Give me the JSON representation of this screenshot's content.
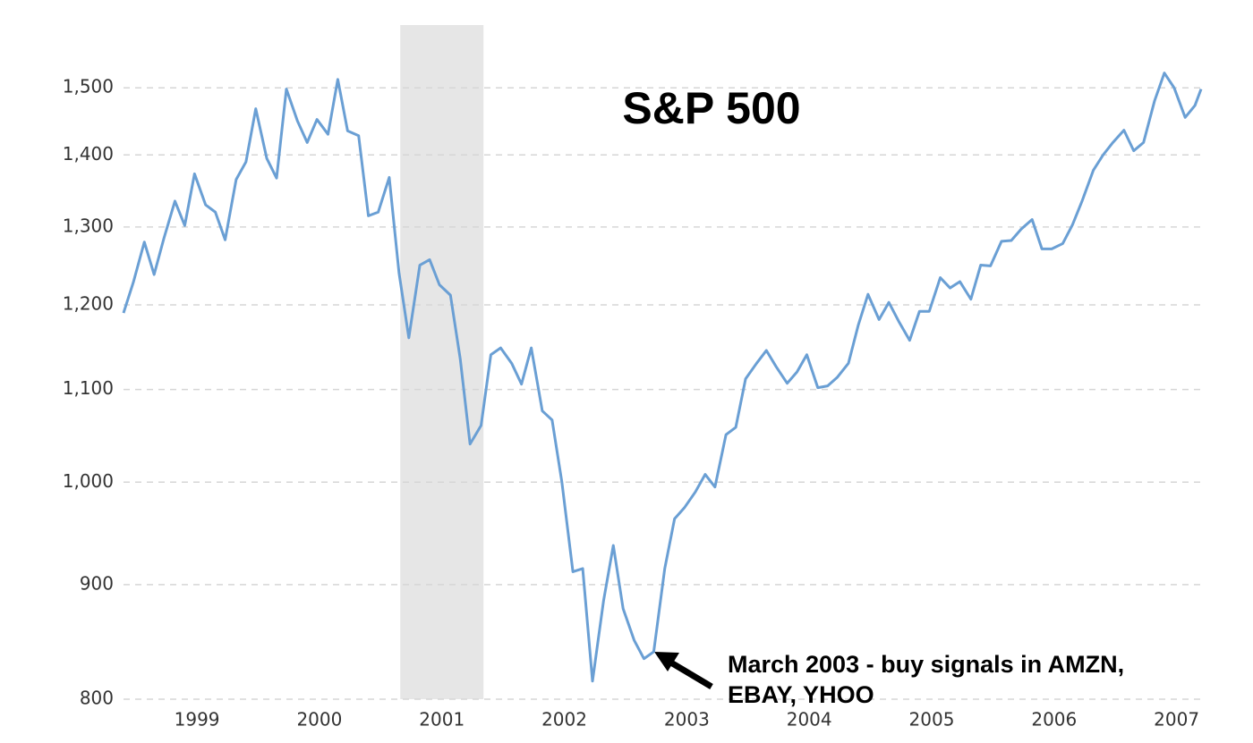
{
  "chart_data": {
    "type": "line",
    "title": "S&P 500",
    "annotation": [
      "March 2003 - buy signals in AMZN,",
      "EBAY, YHOO"
    ],
    "log_y": true,
    "grid": true,
    "shaded_x": [
      2000.66,
      2001.34
    ],
    "xlim": [
      1998.4,
      2007.2
    ],
    "xticks": [
      1999,
      2000,
      2001,
      2002,
      2003,
      2004,
      2005,
      2006,
      2007
    ],
    "ylim": [
      800,
      1600
    ],
    "yticks": [
      {
        "value": 800,
        "label": "800"
      },
      {
        "value": 900,
        "label": "900"
      },
      {
        "value": 1000,
        "label": "1,000"
      },
      {
        "value": 1100,
        "label": "1,100"
      },
      {
        "value": 1200,
        "label": "1,200"
      },
      {
        "value": 1300,
        "label": "1,300"
      },
      {
        "value": 1400,
        "label": "1,400"
      },
      {
        "value": 1500,
        "label": "1,500"
      }
    ],
    "x": [
      1998.4,
      1998.48,
      1998.57,
      1998.65,
      1998.73,
      1998.82,
      1998.9,
      1998.98,
      1999.07,
      1999.15,
      1999.23,
      1999.32,
      1999.4,
      1999.48,
      1999.57,
      1999.65,
      1999.73,
      1999.82,
      1999.9,
      1999.98,
      2000.07,
      2000.15,
      2000.23,
      2000.32,
      2000.4,
      2000.48,
      2000.57,
      2000.65,
      2000.73,
      2000.82,
      2000.9,
      2000.98,
      2001.07,
      2001.15,
      2001.23,
      2001.32,
      2001.4,
      2001.48,
      2001.57,
      2001.65,
      2001.73,
      2001.82,
      2001.9,
      2001.98,
      2002.07,
      2002.15,
      2002.23,
      2002.32,
      2002.4,
      2002.48,
      2002.57,
      2002.65,
      2002.73,
      2002.82,
      2002.9,
      2002.98,
      2003.07,
      2003.15,
      2003.23,
      2003.32,
      2003.4,
      2003.48,
      2003.57,
      2003.65,
      2003.73,
      2003.82,
      2003.9,
      2003.98,
      2004.07,
      2004.15,
      2004.23,
      2004.32,
      2004.4,
      2004.48,
      2004.57,
      2004.65,
      2004.73,
      2004.82,
      2004.9,
      2004.98,
      2005.07,
      2005.15,
      2005.23,
      2005.32,
      2005.4,
      2005.48,
      2005.57,
      2005.65,
      2005.73,
      2005.82,
      2005.9,
      2005.98,
      2006.07,
      2006.15,
      2006.23,
      2006.32,
      2006.4,
      2006.48,
      2006.57,
      2006.65,
      2006.73,
      2006.82,
      2006.9,
      2006.98,
      2007.07,
      2007.15,
      2007.2
    ],
    "series": [
      {
        "color": "#6a9fd4",
        "values": [
          1190,
          1228,
          1280,
          1238,
          1285,
          1335,
          1302,
          1373,
          1330,
          1320,
          1283,
          1365,
          1390,
          1468,
          1395,
          1367,
          1498,
          1450,
          1418,
          1452,
          1430,
          1513,
          1435,
          1428,
          1315,
          1320,
          1368,
          1240,
          1160,
          1250,
          1257,
          1225,
          1212,
          1135,
          1040,
          1060,
          1140,
          1148,
          1130,
          1106,
          1148,
          1076,
          1066,
          1000,
          912,
          915,
          815,
          885,
          937,
          878,
          850,
          834,
          840,
          915,
          963,
          974,
          990,
          1008,
          995,
          1050,
          1058,
          1112,
          1130,
          1145,
          1126,
          1107,
          1120,
          1140,
          1102,
          1104,
          1114,
          1130,
          1175,
          1213,
          1182,
          1203,
          1180,
          1157,
          1192,
          1192,
          1234,
          1221,
          1229,
          1207,
          1250,
          1249,
          1281,
          1282,
          1297,
          1310,
          1271,
          1271,
          1278,
          1303,
          1336,
          1378,
          1400,
          1418,
          1436,
          1406,
          1418,
          1480,
          1523,
          1500,
          1455,
          1473,
          1498
        ]
      }
    ]
  }
}
